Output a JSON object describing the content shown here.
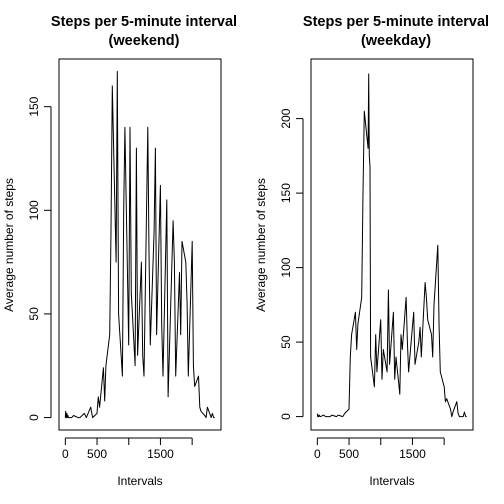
{
  "chart_data": [
    {
      "type": "line",
      "title": "Steps per 5-minute interval",
      "subtitle": "(weekend)",
      "xlabel": "Intervals",
      "ylabel": "Average number of steps",
      "xlim": [
        -100,
        2455
      ],
      "ylim": [
        -6,
        173
      ],
      "xticks": [
        0,
        500,
        1000,
        1500,
        2000
      ],
      "xtick_labels": [
        "0",
        "500",
        "",
        "1500",
        ""
      ],
      "yticks": [
        0,
        50,
        100,
        150
      ],
      "ytick_labels": [
        "0",
        "50",
        "100",
        "150"
      ],
      "grid": false,
      "series": [
        {
          "x": [
            0,
            5,
            10,
            15,
            20,
            25,
            30,
            40,
            50,
            100,
            130,
            200,
            230,
            300,
            330,
            400,
            430,
            500,
            520,
            540,
            600,
            620,
            640,
            700,
            720,
            740,
            800,
            820,
            840,
            900,
            920,
            940,
            1000,
            1020,
            1040,
            1100,
            1120,
            1140,
            1200,
            1220,
            1240,
            1300,
            1320,
            1340,
            1400,
            1420,
            1440,
            1500,
            1520,
            1540,
            1600,
            1620,
            1640,
            1700,
            1720,
            1740,
            1800,
            1820,
            1840,
            1900,
            1920,
            1940,
            2000,
            2020,
            2040,
            2100,
            2120,
            2140,
            2200,
            2220,
            2240,
            2300,
            2320,
            2340,
            2355
          ],
          "y": [
            0,
            3,
            0,
            1,
            0,
            2,
            0,
            1,
            0,
            0,
            1,
            0,
            0,
            2,
            0,
            5,
            0,
            2,
            10,
            5,
            24,
            8,
            25,
            40,
            90,
            160,
            75,
            167,
            50,
            20,
            100,
            140,
            35,
            140,
            60,
            25,
            130,
            30,
            75,
            30,
            20,
            140,
            80,
            35,
            90,
            130,
            40,
            112,
            45,
            20,
            105,
            10,
            30,
            95,
            75,
            20,
            70,
            40,
            85,
            75,
            55,
            20,
            85,
            25,
            15,
            20,
            5,
            3,
            1,
            0,
            5,
            0,
            2,
            0,
            0
          ]
        }
      ]
    },
    {
      "type": "line",
      "title": "Steps per 5-minute interval",
      "subtitle": "(weekday)",
      "xlabel": "Intervals",
      "ylabel": "Average number of steps",
      "xlim": [
        -100,
        2455
      ],
      "ylim": [
        -9,
        240
      ],
      "xticks": [
        0,
        500,
        1000,
        1500,
        2000
      ],
      "xtick_labels": [
        "0",
        "500",
        "",
        "1500",
        ""
      ],
      "yticks": [
        0,
        50,
        100,
        150,
        200
      ],
      "ytick_labels": [
        "0",
        "50",
        "100",
        "150",
        "200"
      ],
      "grid": false,
      "series": [
        {
          "x": [
            0,
            5,
            10,
            20,
            30,
            40,
            50,
            100,
            130,
            200,
            230,
            300,
            330,
            400,
            430,
            500,
            520,
            540,
            600,
            620,
            640,
            700,
            720,
            740,
            800,
            810,
            820,
            830,
            840,
            900,
            920,
            940,
            1000,
            1020,
            1040,
            1100,
            1120,
            1140,
            1200,
            1220,
            1240,
            1300,
            1320,
            1340,
            1400,
            1420,
            1440,
            1500,
            1520,
            1540,
            1600,
            1620,
            1640,
            1700,
            1720,
            1740,
            1800,
            1820,
            1840,
            1900,
            1920,
            1940,
            2000,
            2020,
            2040,
            2100,
            2120,
            2140,
            2200,
            2220,
            2240,
            2300,
            2320,
            2340,
            2355
          ],
          "y": [
            2,
            0,
            1,
            0,
            1,
            0,
            0,
            1,
            0,
            0,
            1,
            0,
            1,
            0,
            2,
            5,
            40,
            55,
            70,
            45,
            62,
            80,
            150,
            205,
            180,
            230,
            175,
            168,
            40,
            20,
            55,
            30,
            65,
            25,
            45,
            30,
            85,
            35,
            70,
            25,
            40,
            15,
            55,
            45,
            80,
            50,
            30,
            60,
            70,
            35,
            50,
            60,
            40,
            90,
            80,
            65,
            55,
            40,
            75,
            115,
            60,
            30,
            20,
            10,
            12,
            5,
            0,
            3,
            10,
            2,
            0,
            0,
            3,
            0,
            0
          ]
        }
      ]
    }
  ]
}
